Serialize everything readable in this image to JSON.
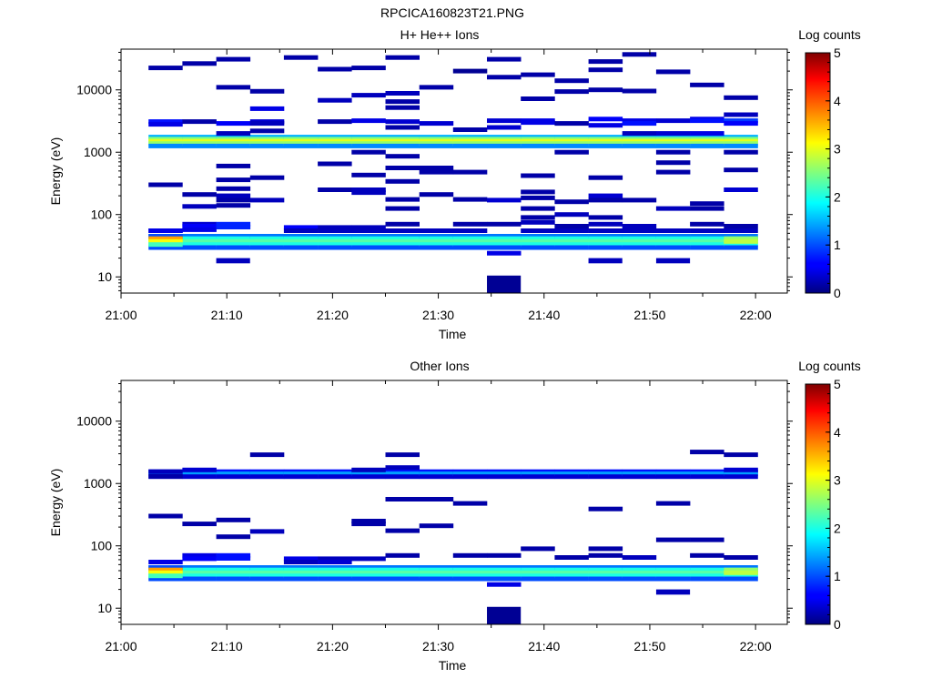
{
  "figure": {
    "title": "RPCICA160823T21.PNG"
  },
  "chart_data": [
    {
      "type": "heatmap",
      "title": "H+ He++ Ions",
      "xlabel": "Time",
      "ylabel": "Energy (eV)",
      "x_ticks": [
        "21:00",
        "21:10",
        "21:20",
        "21:30",
        "21:40",
        "21:50",
        "22:00"
      ],
      "xlim_minutes": [
        0,
        63
      ],
      "y_scale": "log",
      "y_ticks": [
        "10",
        "100",
        "1000",
        "10000"
      ],
      "ylim": [
        5.5,
        45000
      ],
      "colorbar": {
        "label": "Log counts",
        "range": [
          0,
          5
        ],
        "ticks": [
          "0",
          "1",
          "2",
          "3",
          "4",
          "5"
        ]
      },
      "time_bins_start_minutes": [
        2.6,
        5.8,
        9.0,
        12.2,
        15.4,
        18.6,
        21.8,
        25.0,
        28.2,
        31.4,
        34.6,
        37.8,
        41.0,
        44.2,
        47.4,
        50.6,
        53.8,
        57.0
      ],
      "time_bin_width_minutes": 3.2,
      "continuous_bands": [
        {
          "energy_range_eV": [
            1850,
            1200
          ],
          "levels": [
            [
              1750,
              1.5
            ],
            [
              1620,
              2.5
            ],
            [
              1500,
              3.0
            ],
            [
              1380,
              2.6
            ],
            [
              1260,
              1.3
            ]
          ]
        },
        {
          "energy_range_eV": [
            47,
            27
          ],
          "levels": [
            [
              45,
              1.2
            ],
            [
              41,
              2.0
            ],
            [
              37,
              2.3
            ],
            [
              33,
              2.0
            ],
            [
              29.5,
              1.0
            ]
          ]
        }
      ],
      "first_bin_overrides": [
        [
          45,
          1.0
        ],
        [
          41,
          3.6
        ],
        [
          37,
          3.1
        ],
        [
          33,
          2.2
        ],
        [
          55,
          0.5
        ]
      ],
      "last_bin_overrides": [
        [
          41,
          2.6
        ],
        [
          37,
          2.8
        ]
      ],
      "sparse_cells": [
        [
          0,
          22500,
          0.2
        ],
        [
          0,
          3100,
          0.7
        ],
        [
          0,
          2800,
          0.5
        ],
        [
          0,
          300,
          0.2
        ],
        [
          0,
          55,
          0.5
        ],
        [
          1,
          26500,
          0.2
        ],
        [
          1,
          3100,
          0.2
        ],
        [
          1,
          210,
          0.2
        ],
        [
          1,
          135,
          0.3
        ],
        [
          1,
          70,
          0.4
        ],
        [
          1,
          65,
          0.6
        ],
        [
          1,
          57,
          0.5
        ],
        [
          2,
          31000,
          0.2
        ],
        [
          2,
          11000,
          0.2
        ],
        [
          2,
          2900,
          0.6
        ],
        [
          2,
          2000,
          0.3
        ],
        [
          2,
          600,
          0.2
        ],
        [
          2,
          360,
          0.2
        ],
        [
          2,
          260,
          0.2
        ],
        [
          2,
          200,
          0.3
        ],
        [
          2,
          170,
          0.2
        ],
        [
          2,
          140,
          0.2
        ],
        [
          2,
          70,
          0.8
        ],
        [
          2,
          63,
          0.8
        ],
        [
          2,
          18,
          0.3
        ],
        [
          3,
          9500,
          0.2
        ],
        [
          3,
          5000,
          0.5
        ],
        [
          3,
          3100,
          0.4
        ],
        [
          3,
          2900,
          0.3
        ],
        [
          3,
          2200,
          0.2
        ],
        [
          3,
          390,
          0.2
        ],
        [
          3,
          170,
          0.3
        ],
        [
          4,
          33000,
          0.2
        ],
        [
          4,
          62,
          0.6
        ],
        [
          4,
          55,
          0.3
        ],
        [
          5,
          21500,
          0.2
        ],
        [
          5,
          6800,
          0.3
        ],
        [
          5,
          3100,
          0.2
        ],
        [
          5,
          650,
          0.2
        ],
        [
          5,
          250,
          0.2
        ],
        [
          5,
          62,
          0.3
        ],
        [
          5,
          55,
          0.3
        ],
        [
          6,
          22500,
          0.2
        ],
        [
          6,
          8200,
          0.3
        ],
        [
          6,
          3200,
          0.5
        ],
        [
          6,
          1000,
          0.2
        ],
        [
          6,
          430,
          0.2
        ],
        [
          6,
          250,
          0.3
        ],
        [
          6,
          225,
          0.3
        ],
        [
          6,
          62,
          0.3
        ],
        [
          6,
          55,
          0.3
        ],
        [
          7,
          33000,
          0.2
        ],
        [
          7,
          8800,
          0.3
        ],
        [
          7,
          6500,
          0.2
        ],
        [
          7,
          5200,
          0.2
        ],
        [
          7,
          3100,
          0.4
        ],
        [
          7,
          2500,
          0.2
        ],
        [
          7,
          860,
          0.2
        ],
        [
          7,
          560,
          0.2
        ],
        [
          7,
          340,
          0.2
        ],
        [
          7,
          175,
          0.2
        ],
        [
          7,
          125,
          0.2
        ],
        [
          7,
          70,
          0.2
        ],
        [
          7,
          55,
          0.3
        ],
        [
          8,
          11000,
          0.2
        ],
        [
          8,
          2900,
          0.4
        ],
        [
          8,
          560,
          0.2
        ],
        [
          8,
          480,
          0.2
        ],
        [
          8,
          210,
          0.2
        ],
        [
          8,
          55,
          0.3
        ],
        [
          9,
          20000,
          0.1
        ],
        [
          9,
          2300,
          0.2
        ],
        [
          9,
          480,
          0.2
        ],
        [
          9,
          175,
          0.2
        ],
        [
          9,
          70,
          0.2
        ],
        [
          9,
          55,
          0.3
        ],
        [
          10,
          31000,
          0.2
        ],
        [
          10,
          16000,
          0.2
        ],
        [
          10,
          3200,
          0.4
        ],
        [
          10,
          2500,
          0.4
        ],
        [
          10,
          170,
          0.4
        ],
        [
          10,
          70,
          0.2
        ],
        [
          10,
          24,
          0.5
        ],
        [
          10,
          9,
          0.1
        ],
        [
          11,
          17500,
          0.2
        ],
        [
          11,
          7200,
          0.2
        ],
        [
          11,
          3200,
          0.5
        ],
        [
          11,
          3000,
          0.5
        ],
        [
          11,
          420,
          0.2
        ],
        [
          11,
          230,
          0.2
        ],
        [
          11,
          185,
          0.2
        ],
        [
          11,
          125,
          0.2
        ],
        [
          11,
          90,
          0.2
        ],
        [
          11,
          75,
          0.3
        ],
        [
          11,
          55,
          0.3
        ],
        [
          12,
          14000,
          0.2
        ],
        [
          12,
          9400,
          0.2
        ],
        [
          12,
          2900,
          0.2
        ],
        [
          12,
          1000,
          0.2
        ],
        [
          12,
          160,
          0.2
        ],
        [
          12,
          100,
          0.3
        ],
        [
          12,
          65,
          0.2
        ],
        [
          12,
          55,
          0.3
        ],
        [
          13,
          28500,
          0.2
        ],
        [
          13,
          21000,
          0.2
        ],
        [
          13,
          10000,
          0.2
        ],
        [
          13,
          3400,
          0.6
        ],
        [
          13,
          2700,
          0.5
        ],
        [
          13,
          390,
          0.2
        ],
        [
          13,
          200,
          0.4
        ],
        [
          13,
          170,
          0.2
        ],
        [
          13,
          90,
          0.2
        ],
        [
          13,
          70,
          0.3
        ],
        [
          13,
          18,
          0.3
        ],
        [
          13,
          55,
          0.3
        ],
        [
          14,
          37000,
          0.2
        ],
        [
          14,
          9600,
          0.2
        ],
        [
          14,
          3200,
          0.5
        ],
        [
          14,
          2900,
          0.7
        ],
        [
          14,
          2000,
          0.3
        ],
        [
          14,
          170,
          0.2
        ],
        [
          14,
          65,
          0.3
        ],
        [
          14,
          55,
          0.3
        ],
        [
          15,
          19500,
          0.2
        ],
        [
          15,
          3200,
          0.4
        ],
        [
          15,
          2000,
          0.4
        ],
        [
          15,
          1000,
          0.2
        ],
        [
          15,
          680,
          0.2
        ],
        [
          15,
          480,
          0.2
        ],
        [
          15,
          125,
          0.3
        ],
        [
          15,
          18,
          0.3
        ],
        [
          15,
          55,
          0.3
        ],
        [
          16,
          12000,
          0.2
        ],
        [
          16,
          3400,
          0.5
        ],
        [
          16,
          3200,
          0.7
        ],
        [
          16,
          2000,
          0.5
        ],
        [
          16,
          150,
          0.2
        ],
        [
          16,
          125,
          0.2
        ],
        [
          16,
          70,
          0.2
        ],
        [
          16,
          55,
          0.3
        ],
        [
          17,
          7500,
          0.2
        ],
        [
          17,
          4000,
          0.3
        ],
        [
          17,
          3200,
          0.9
        ],
        [
          17,
          2900,
          0.6
        ],
        [
          17,
          1000,
          0.2
        ],
        [
          17,
          520,
          0.2
        ],
        [
          17,
          250,
          0.4
        ],
        [
          17,
          65,
          0.2
        ],
        [
          17,
          55,
          0.3
        ]
      ]
    },
    {
      "type": "heatmap",
      "title": "Other Ions",
      "xlabel": "Time",
      "ylabel": "Energy (eV)",
      "x_ticks": [
        "21:00",
        "21:10",
        "21:20",
        "21:30",
        "21:40",
        "21:50",
        "22:00"
      ],
      "xlim_minutes": [
        0,
        63
      ],
      "y_scale": "log",
      "y_ticks": [
        "10",
        "100",
        "1000",
        "10000"
      ],
      "ylim": [
        5.5,
        45000
      ],
      "colorbar": {
        "label": "Log counts",
        "range": [
          0,
          5
        ],
        "ticks": [
          "0",
          "1",
          "2",
          "3",
          "4",
          "5"
        ]
      },
      "time_bins_start_minutes": [
        2.6,
        5.8,
        9.0,
        12.2,
        15.4,
        18.6,
        21.8,
        25.0,
        28.2,
        31.4,
        34.6,
        37.8,
        41.0,
        44.2,
        47.4,
        50.6,
        53.8,
        57.0
      ],
      "time_bin_width_minutes": 3.2,
      "continuous_bands": [
        {
          "energy_range_eV": [
            1620,
            1200
          ],
          "levels": [
            [
              1550,
              0.7
            ],
            [
              1430,
              1.4
            ],
            [
              1290,
              0.4
            ]
          ]
        },
        {
          "energy_range_eV": [
            47,
            27
          ],
          "levels": [
            [
              45,
              1.2
            ],
            [
              41,
              2.0
            ],
            [
              37,
              2.3
            ],
            [
              33,
              2.0
            ],
            [
              29.5,
              1.0
            ]
          ]
        }
      ],
      "first_bin_overrides": [
        [
          45,
          1.0
        ],
        [
          41,
          3.6
        ],
        [
          37,
          3.1
        ],
        [
          33,
          2.2
        ],
        [
          55,
          0.5
        ],
        [
          1550,
          0.3
        ],
        [
          1300,
          0.2
        ]
      ],
      "last_bin_overrides": [
        [
          41,
          2.6
        ],
        [
          37,
          2.8
        ]
      ],
      "sparse_cells": [
        [
          0,
          300,
          0.2
        ],
        [
          1,
          225,
          0.2
        ],
        [
          1,
          1650,
          0.4
        ],
        [
          1,
          70,
          0.5
        ],
        [
          1,
          62,
          0.6
        ],
        [
          2,
          260,
          0.2
        ],
        [
          2,
          140,
          0.2
        ],
        [
          2,
          70,
          0.7
        ],
        [
          2,
          63,
          0.7
        ],
        [
          3,
          2900,
          0.2
        ],
        [
          3,
          170,
          0.3
        ],
        [
          4,
          62,
          0.5
        ],
        [
          4,
          55,
          0.3
        ],
        [
          5,
          62,
          0.3
        ],
        [
          5,
          55,
          0.4
        ],
        [
          6,
          250,
          0.2
        ],
        [
          6,
          225,
          0.2
        ],
        [
          6,
          1650,
          0.3
        ],
        [
          6,
          62,
          0.3
        ],
        [
          7,
          2900,
          0.2
        ],
        [
          7,
          1800,
          0.3
        ],
        [
          7,
          560,
          0.2
        ],
        [
          7,
          175,
          0.2
        ],
        [
          7,
          70,
          0.2
        ],
        [
          8,
          560,
          0.2
        ],
        [
          8,
          210,
          0.2
        ],
        [
          9,
          480,
          0.2
        ],
        [
          9,
          70,
          0.2
        ],
        [
          10,
          70,
          0.2
        ],
        [
          10,
          24,
          0.5
        ],
        [
          10,
          9,
          0.1
        ],
        [
          11,
          90,
          0.2
        ],
        [
          12,
          65,
          0.2
        ],
        [
          13,
          390,
          0.2
        ],
        [
          13,
          90,
          0.2
        ],
        [
          13,
          70,
          0.2
        ],
        [
          14,
          65,
          0.3
        ],
        [
          15,
          480,
          0.2
        ],
        [
          15,
          125,
          0.2
        ],
        [
          15,
          18,
          0.3
        ],
        [
          16,
          3200,
          0.2
        ],
        [
          16,
          125,
          0.2
        ],
        [
          16,
          70,
          0.2
        ],
        [
          17,
          2900,
          0.2
        ],
        [
          17,
          1650,
          0.4
        ],
        [
          17,
          65,
          0.2
        ]
      ]
    }
  ]
}
